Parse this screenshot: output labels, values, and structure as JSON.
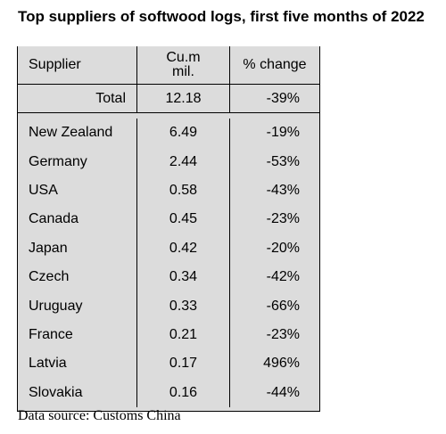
{
  "title": "Top suppliers of softwood logs, first five months of 2022",
  "table": {
    "headers": {
      "supplier": "Supplier",
      "volume_line1": "Cu.m",
      "volume_line2": "mil.",
      "change": "% change"
    },
    "total": {
      "label": "Total",
      "volume": "12.18",
      "change": "-39%"
    },
    "rows": [
      {
        "supplier": "New Zealand",
        "volume": "6.49",
        "change": "-19%"
      },
      {
        "supplier": "Germany",
        "volume": "2.44",
        "change": "-53%"
      },
      {
        "supplier": "USA",
        "volume": "0.58",
        "change": "-43%"
      },
      {
        "supplier": "Canada",
        "volume": "0.45",
        "change": "-23%"
      },
      {
        "supplier": "Japan",
        "volume": "0.42",
        "change": "-20%"
      },
      {
        "supplier": "Czech",
        "volume": "0.34",
        "change": "-42%"
      },
      {
        "supplier": "Uruguay",
        "volume": "0.33",
        "change": "-66%"
      },
      {
        "supplier": "France",
        "volume": "0.21",
        "change": "-23%"
      },
      {
        "supplier": "Latvia",
        "volume": "0.17",
        "change": "496%"
      },
      {
        "supplier": "Slovakia",
        "volume": "0.16",
        "change": "-44%"
      }
    ]
  },
  "source": "Data source: Customs China"
}
